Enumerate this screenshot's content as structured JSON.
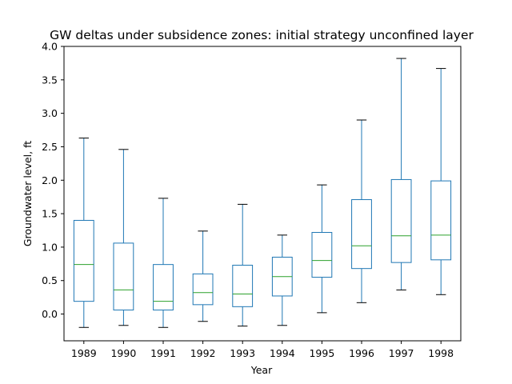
{
  "chart_data": {
    "type": "boxplot",
    "title": "GW deltas under subsidence zones: initial strategy unconfined layer",
    "xlabel": "Year",
    "ylabel": "Groundwater level, ft",
    "ylim": [
      -0.4,
      4.0
    ],
    "yticks": [
      "0.0",
      "0.5",
      "1.0",
      "1.5",
      "2.0",
      "2.5",
      "3.0",
      "3.5",
      "4.0"
    ],
    "grid": false,
    "legend": "none",
    "colors": {
      "box": "#1f77b4",
      "median": "#2ca02c",
      "whisker": "#1f77b4",
      "cap": "#000000",
      "axes": "#000000"
    },
    "categories": [
      "1989",
      "1990",
      "1991",
      "1992",
      "1993",
      "1994",
      "1995",
      "1996",
      "1997",
      "1998"
    ],
    "boxes": [
      {
        "label": "1989",
        "whislo": -0.2,
        "q1": 0.19,
        "med": 0.74,
        "q3": 1.4,
        "whishi": 2.63
      },
      {
        "label": "1990",
        "whislo": -0.17,
        "q1": 0.06,
        "med": 0.36,
        "q3": 1.06,
        "whishi": 2.46
      },
      {
        "label": "1991",
        "whislo": -0.2,
        "q1": 0.06,
        "med": 0.19,
        "q3": 0.74,
        "whishi": 1.73
      },
      {
        "label": "1992",
        "whislo": -0.11,
        "q1": 0.14,
        "med": 0.32,
        "q3": 0.6,
        "whishi": 1.24
      },
      {
        "label": "1993",
        "whislo": -0.18,
        "q1": 0.11,
        "med": 0.3,
        "q3": 0.73,
        "whishi": 1.64
      },
      {
        "label": "1994",
        "whislo": -0.17,
        "q1": 0.27,
        "med": 0.56,
        "q3": 0.85,
        "whishi": 1.18
      },
      {
        "label": "1995",
        "whislo": 0.02,
        "q1": 0.55,
        "med": 0.8,
        "q3": 1.22,
        "whishi": 1.93
      },
      {
        "label": "1996",
        "whislo": 0.17,
        "q1": 0.68,
        "med": 1.02,
        "q3": 1.71,
        "whishi": 2.9
      },
      {
        "label": "1997",
        "whislo": 0.36,
        "q1": 0.77,
        "med": 1.17,
        "q3": 2.01,
        "whishi": 3.82
      },
      {
        "label": "1998",
        "whislo": 0.29,
        "q1": 0.81,
        "med": 1.18,
        "q3": 1.99,
        "whishi": 3.67
      }
    ]
  }
}
